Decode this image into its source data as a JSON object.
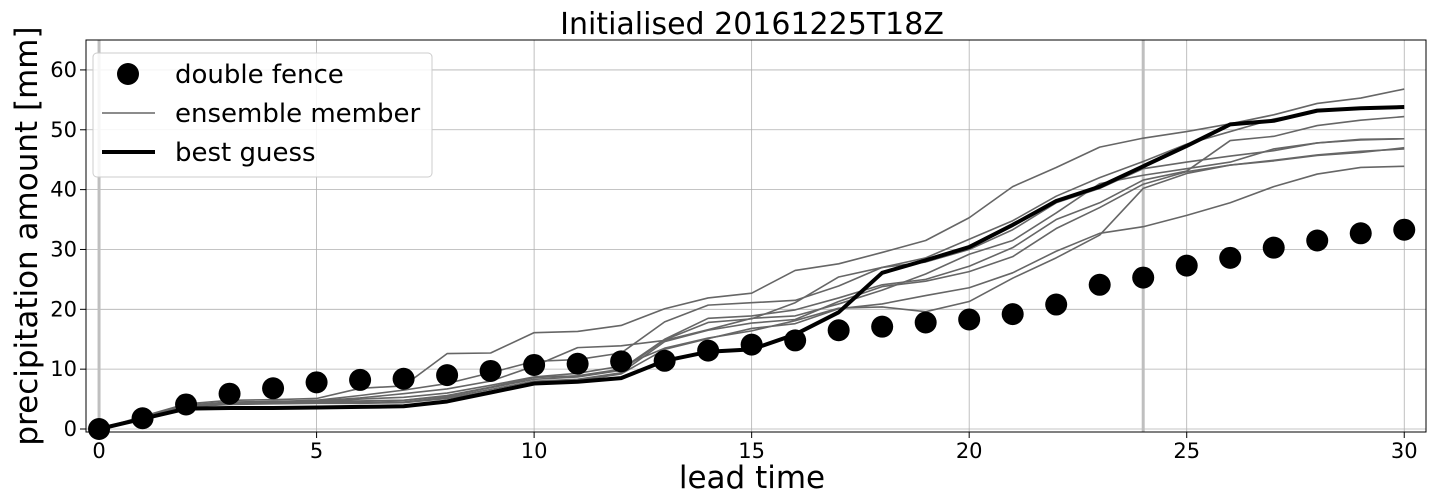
{
  "chart_data": {
    "type": "line",
    "title": "Initialised 20161225T18Z",
    "xlabel": "lead time",
    "ylabel": "precipitation amount [mm]",
    "xlim": [
      -0.3,
      30.5
    ],
    "ylim": [
      -0.5,
      65
    ],
    "xticks": [
      0,
      5,
      10,
      15,
      20,
      25,
      30
    ],
    "yticks": [
      0,
      10,
      20,
      30,
      40,
      50,
      60
    ],
    "grid": true,
    "vlines": [
      0,
      24
    ],
    "legend_position": "top-left",
    "legend": [
      {
        "label": "double fence",
        "style": "marker"
      },
      {
        "label": "ensemble member",
        "style": "thin-line"
      },
      {
        "label": "best guess",
        "style": "thick-line"
      }
    ],
    "colors": {
      "double_fence": "#000000",
      "ensemble_member": "#666666",
      "best_guess": "#000000",
      "grid": "#b0b0b0",
      "vline": "#bfbfbf"
    },
    "double_fence": {
      "x": [
        0,
        1,
        2,
        3,
        4,
        5,
        6,
        7,
        8,
        9,
        10,
        11,
        12,
        13,
        14,
        15,
        16,
        17,
        18,
        19,
        20,
        21,
        22,
        23,
        24,
        25,
        26,
        27,
        28,
        29,
        30
      ],
      "y": [
        0,
        1.8,
        4.1,
        5.9,
        6.8,
        7.8,
        8.2,
        8.4,
        9.0,
        9.7,
        10.7,
        10.9,
        11.3,
        11.4,
        13.1,
        14.1,
        14.8,
        16.5,
        17.1,
        17.8,
        18.3,
        19.2,
        20.8,
        24.1,
        25.3,
        27.3,
        28.6,
        30.3,
        31.5,
        32.7,
        33.3
      ]
    },
    "best_guess": {
      "x": [
        0,
        1,
        2,
        3,
        4,
        5,
        6,
        7,
        8,
        9,
        10,
        11,
        12,
        13,
        14,
        15,
        16,
        17,
        18,
        19,
        20,
        21,
        22,
        23,
        24,
        25,
        26,
        27,
        28,
        29,
        30
      ],
      "y": [
        0,
        1.7,
        3.4,
        3.5,
        3.5,
        3.6,
        3.7,
        3.8,
        4.6,
        6.1,
        7.6,
        7.9,
        8.5,
        11.4,
        12.9,
        13.3,
        15.8,
        19.5,
        26.1,
        28.2,
        30.4,
        34.1,
        38.1,
        40.5,
        43.9,
        47.3,
        50.9,
        51.5,
        53.2,
        53.6,
        53.8
      ]
    },
    "ensemble_members": [
      {
        "x": [
          0,
          1,
          2,
          3,
          4,
          5,
          6,
          7,
          8,
          9,
          10,
          11,
          12,
          13,
          14,
          15,
          16,
          17,
          18,
          19,
          20,
          21,
          22,
          23,
          24,
          25,
          26,
          27,
          28,
          29,
          30
        ],
        "y": [
          0,
          2.1,
          4.2,
          4.8,
          4.9,
          5.1,
          6.8,
          7.2,
          12.6,
          12.7,
          16.1,
          16.3,
          17.3,
          20.1,
          21.9,
          22.7,
          26.5,
          27.6,
          29.5,
          31.5,
          35.3,
          40.5,
          43.7,
          47.1,
          48.6,
          49.7,
          51.0,
          52.5,
          54.4,
          55.3,
          56.8
        ]
      },
      {
        "x": [
          0,
          1,
          2,
          3,
          4,
          5,
          6,
          7,
          8,
          9,
          10,
          11,
          12,
          13,
          14,
          15,
          16,
          17,
          18,
          19,
          20,
          21,
          22,
          23,
          24,
          25,
          26,
          27,
          28,
          29,
          30
        ],
        "y": [
          0,
          2.0,
          4.0,
          4.5,
          4.6,
          4.8,
          5.6,
          6.5,
          7.6,
          9.4,
          11.3,
          11.6,
          12.7,
          17.9,
          20.7,
          21.1,
          21.5,
          23.9,
          27.0,
          28.6,
          31.7,
          34.8,
          38.9,
          42.0,
          44.7,
          47.6,
          49.7,
          51.8,
          53.1,
          53.6,
          53.9
        ]
      },
      {
        "x": [
          0,
          1,
          2,
          3,
          4,
          5,
          6,
          7,
          8,
          9,
          10,
          11,
          12,
          13,
          14,
          15,
          16,
          17,
          18,
          19,
          20,
          21,
          22,
          23,
          24,
          25,
          26,
          27,
          28,
          29,
          30
        ],
        "y": [
          0,
          1.9,
          3.9,
          4.4,
          4.5,
          4.6,
          4.7,
          4.8,
          5.6,
          7.0,
          8.6,
          8.9,
          10.0,
          15.0,
          18.5,
          18.9,
          19.9,
          21.9,
          24.1,
          25.0,
          27.2,
          30.3,
          35.0,
          37.8,
          41.6,
          43.1,
          48.2,
          48.9,
          50.7,
          51.6,
          52.2
        ]
      },
      {
        "x": [
          0,
          1,
          2,
          3,
          4,
          5,
          6,
          7,
          8,
          9,
          10,
          11,
          12,
          13,
          14,
          15,
          16,
          17,
          18,
          19,
          20,
          21,
          22,
          23,
          24,
          25,
          26,
          27,
          28,
          29,
          30
        ],
        "y": [
          0,
          1.8,
          3.8,
          4.3,
          4.4,
          4.5,
          4.6,
          4.8,
          5.5,
          6.9,
          8.3,
          8.7,
          9.8,
          14.9,
          17.8,
          18.4,
          21.1,
          25.4,
          27.0,
          27.9,
          30.0,
          33.3,
          37.8,
          40.2,
          43.5,
          44.6,
          45.6,
          46.5,
          47.8,
          48.4,
          48.5
        ]
      },
      {
        "x": [
          0,
          1,
          2,
          3,
          4,
          5,
          6,
          7,
          8,
          9,
          10,
          11,
          12,
          13,
          14,
          15,
          16,
          17,
          18,
          19,
          20,
          21,
          22,
          23,
          24,
          25,
          26,
          27,
          28,
          29,
          30
        ],
        "y": [
          0,
          1.8,
          3.7,
          4.2,
          4.3,
          4.4,
          4.4,
          4.5,
          5.3,
          6.6,
          8.0,
          8.3,
          9.4,
          14.6,
          16.5,
          17.7,
          18.3,
          21.3,
          23.8,
          24.7,
          26.3,
          28.8,
          33.5,
          37.0,
          40.9,
          43.0,
          44.1,
          44.8,
          45.7,
          46.2,
          47.0
        ]
      },
      {
        "x": [
          0,
          1,
          2,
          3,
          4,
          5,
          6,
          7,
          8,
          9,
          10,
          11,
          12,
          13,
          14,
          15,
          16,
          17,
          18,
          19,
          20,
          21,
          22,
          23,
          24,
          25,
          26,
          27,
          28,
          29,
          30
        ],
        "y": [
          0,
          1.8,
          3.7,
          4.1,
          4.2,
          4.3,
          4.3,
          4.4,
          5.1,
          6.3,
          7.7,
          8.1,
          9.2,
          13.3,
          15.1,
          16.8,
          17.6,
          20.1,
          20.9,
          22.3,
          23.6,
          26.1,
          29.7,
          32.7,
          33.8,
          35.7,
          37.8,
          40.5,
          42.6,
          43.7,
          43.9
        ]
      },
      {
        "x": [
          0,
          1,
          2,
          3,
          4,
          5,
          6,
          7,
          8,
          9,
          10,
          11,
          12,
          13,
          14,
          15,
          16,
          17,
          18,
          19,
          20,
          21,
          22,
          23,
          24,
          25,
          26,
          27,
          28,
          29,
          30
        ],
        "y": [
          0,
          1.9,
          3.8,
          4.3,
          4.4,
          4.5,
          5.0,
          5.3,
          6.0,
          7.3,
          8.7,
          9.3,
          10.5,
          13.5,
          15.2,
          16.4,
          18.1,
          20.2,
          20.4,
          19.6,
          21.3,
          25.2,
          28.6,
          32.4,
          40.2,
          42.7,
          44.1,
          44.9,
          45.8,
          46.4,
          46.8
        ]
      },
      {
        "x": [
          0,
          1,
          2,
          3,
          4,
          5,
          6,
          7,
          8,
          9,
          10,
          11,
          12,
          13,
          14,
          15,
          16,
          17,
          18,
          19,
          20,
          21,
          22,
          23,
          24,
          25,
          26,
          27,
          28,
          29,
          30
        ],
        "y": [
          0,
          1.9,
          3.9,
          4.4,
          4.5,
          4.7,
          5.2,
          5.9,
          6.7,
          8.0,
          10.5,
          13.6,
          13.9,
          14.8,
          16.6,
          18.5,
          18.9,
          20.9,
          23.2,
          25.9,
          29.2,
          31.5,
          36.1,
          41.0,
          42.4,
          43.5,
          44.6,
          46.8,
          47.8,
          48.3,
          48.5
        ]
      }
    ]
  }
}
